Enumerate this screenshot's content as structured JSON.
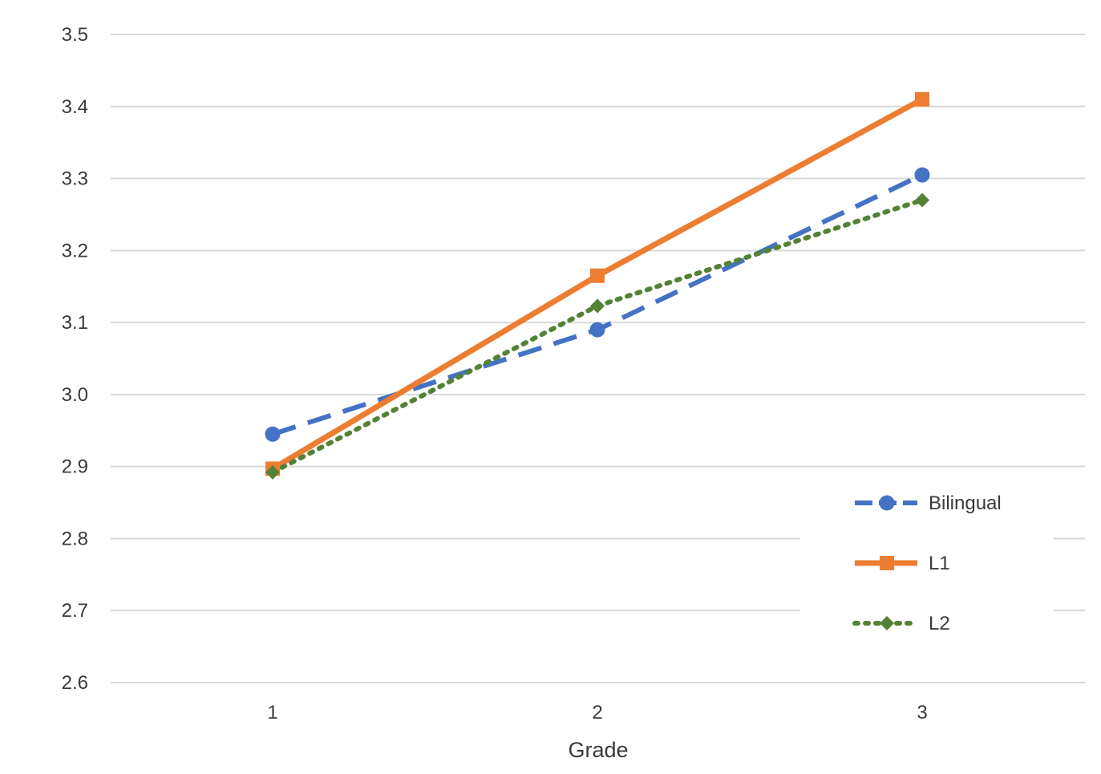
{
  "chart_data": {
    "type": "line",
    "title": "",
    "xlabel": "Grade",
    "ylabel": "",
    "x": [
      "1",
      "2",
      "3"
    ],
    "ylim": [
      2.6,
      3.5
    ],
    "yticks": [
      "2.6",
      "2.7",
      "2.8",
      "2.9",
      "3.0",
      "3.1",
      "3.2",
      "3.3",
      "3.4",
      "3.5"
    ],
    "grid": true,
    "legend_position": "bottom-right",
    "series": [
      {
        "name": "Bilingual",
        "values": [
          2.945,
          3.09,
          3.305
        ],
        "color": "#4472c4",
        "line_style": "dashed",
        "marker": "circle"
      },
      {
        "name": "L1",
        "values": [
          2.897,
          3.165,
          3.41
        ],
        "color": "#ed7d31",
        "line_style": "solid",
        "marker": "square"
      },
      {
        "name": "L2",
        "values": [
          2.892,
          3.123,
          3.27
        ],
        "color": "#548235",
        "line_style": "dotted",
        "marker": "diamond"
      }
    ]
  }
}
